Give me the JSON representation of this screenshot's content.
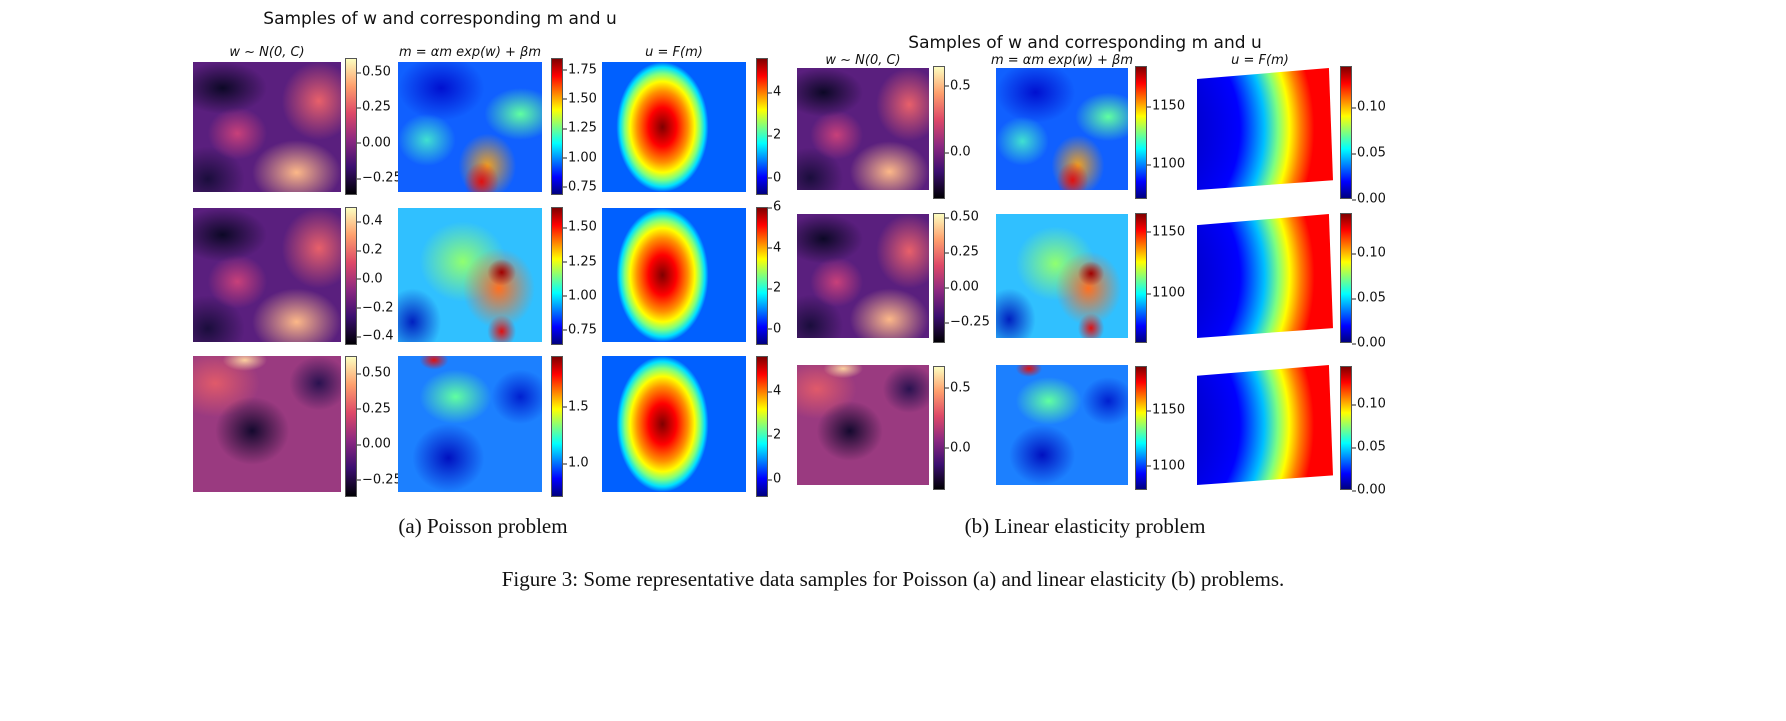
{
  "figure_caption": "Figure 3: Some representative data samples for Poisson (a) and linear elasticity (b) problems.",
  "colormaps": {
    "magma": [
      "#000004",
      "#3b0f70",
      "#8c2981",
      "#de4968",
      "#fe9f6d",
      "#fcfdbf"
    ],
    "jet": [
      "#00007f",
      "#0000ff",
      "#007fff",
      "#00ffff",
      "#7fff7f",
      "#ffff00",
      "#ff7f00",
      "#ff0000",
      "#7f0000"
    ]
  },
  "panels": [
    {
      "id": "poisson",
      "caption": "(a) Poisson problem",
      "title": "Samples of w and corresponding m and u",
      "column_titles": [
        "w ~ N(0, C)",
        "m = αm exp(w) + βm",
        "u = F(m)"
      ],
      "rows": [
        {
          "w": {
            "range": [
              -0.37,
              0.6
            ],
            "ticks": [
              "0.50",
              "0.25",
              "0.00",
              "−0.25"
            ],
            "tick_values": [
              0.5,
              0.25,
              0,
              -0.25
            ]
          },
          "m": {
            "range": [
              0.68,
              1.85
            ],
            "ticks": [
              "1.75",
              "1.50",
              "1.25",
              "1.00",
              "0.75"
            ],
            "tick_values": [
              1.75,
              1.5,
              1.25,
              1,
              0.75
            ]
          },
          "u": {
            "range": [
              -0.8,
              5.6
            ],
            "ticks": [
              "4",
              "2",
              "0"
            ],
            "tick_values": [
              4,
              2,
              0
            ]
          }
        },
        {
          "w": {
            "range": [
              -0.46,
              0.5
            ],
            "ticks": [
              "0.4",
              "0.2",
              "0.0",
              "−0.2",
              "−0.4"
            ],
            "tick_values": [
              0.4,
              0.2,
              0,
              -0.2,
              -0.4
            ]
          },
          "m": {
            "range": [
              0.64,
              1.65
            ],
            "ticks": [
              "1.50",
              "1.25",
              "1.00",
              "0.75"
            ],
            "tick_values": [
              1.5,
              1.25,
              1,
              0.75
            ]
          },
          "u": {
            "range": [
              -0.8,
              6
            ],
            "ticks": [
              "6",
              "4",
              "2",
              "0"
            ],
            "tick_values": [
              6,
              4,
              2,
              0
            ]
          }
        },
        {
          "w": {
            "range": [
              -0.37,
              0.62
            ],
            "ticks": [
              "0.50",
              "0.25",
              "0.00",
              "−0.25"
            ],
            "tick_values": [
              0.5,
              0.25,
              0,
              -0.25
            ]
          },
          "m": {
            "range": [
              0.7,
              1.95
            ],
            "ticks": [
              "1.5",
              "1.0"
            ],
            "tick_values": [
              1.5,
              1.0
            ]
          },
          "u": {
            "range": [
              -0.8,
              5.6
            ],
            "ticks": [
              "4",
              "2",
              "0"
            ],
            "tick_values": [
              4,
              2,
              0
            ]
          }
        }
      ]
    },
    {
      "id": "elasticity",
      "caption": "(b) Linear elasticity problem",
      "title": "Samples of w and corresponding m and u",
      "column_titles": [
        "w ~ N(0, C)",
        "m = αm exp(w) + βm",
        "u = F(m)"
      ],
      "rows": [
        {
          "w": {
            "range": [
              -0.35,
              0.65
            ],
            "ticks": [
              "0.5",
              "0.0"
            ],
            "tick_values": [
              0.5,
              0
            ]
          },
          "m": {
            "range": [
              1070,
              1185
            ],
            "ticks": [
              "1150",
              "1100"
            ],
            "tick_values": [
              1150,
              1100
            ]
          },
          "u": {
            "range": [
              0,
              0.145
            ],
            "ticks": [
              "0.10",
              "0.05",
              "0.00"
            ],
            "tick_values": [
              0.1,
              0.05,
              0
            ]
          }
        },
        {
          "w": {
            "range": [
              -0.4,
              0.53
            ],
            "ticks": [
              "0.50",
              "0.25",
              "0.00",
              "−0.25"
            ],
            "tick_values": [
              0.5,
              0.25,
              0,
              -0.25
            ]
          },
          "m": {
            "range": [
              1060,
              1165
            ],
            "ticks": [
              "1150",
              "1100"
            ],
            "tick_values": [
              1150,
              1100
            ]
          },
          "u": {
            "range": [
              0,
              0.145
            ],
            "ticks": [
              "0.10",
              "0.05",
              "0.00"
            ],
            "tick_values": [
              0.1,
              0.05,
              0
            ]
          }
        },
        {
          "w": {
            "range": [
              -0.35,
              0.68
            ],
            "ticks": [
              "0.5",
              "0.0"
            ],
            "tick_values": [
              0.5,
              0
            ]
          },
          "m": {
            "range": [
              1078,
              1190
            ],
            "ticks": [
              "1150",
              "1100"
            ],
            "tick_values": [
              1150,
              1100
            ]
          },
          "u": {
            "range": [
              0,
              0.145
            ],
            "ticks": [
              "0.10",
              "0.05",
              "0.00"
            ],
            "tick_values": [
              0.1,
              0.05,
              0
            ]
          }
        }
      ]
    }
  ]
}
